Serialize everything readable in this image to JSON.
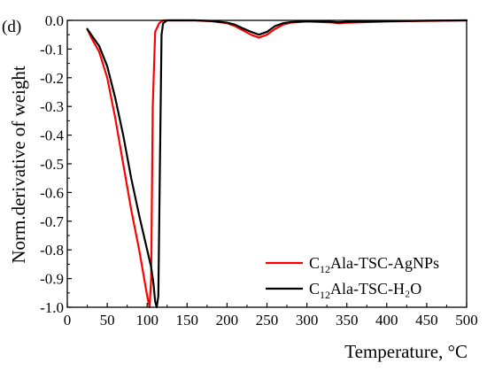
{
  "chart_data": {
    "type": "line",
    "panel_label": "(d)",
    "xlabel": "Temperature, °C",
    "ylabel": "Norm.derivative of weight",
    "xlim": [
      0,
      500
    ],
    "ylim": [
      -1.0,
      0.0
    ],
    "xticks": [
      "0",
      "50",
      "100",
      "150",
      "200",
      "250",
      "300",
      "350",
      "400",
      "450",
      "500"
    ],
    "yticks": [
      "0.0",
      "-0.1",
      "-0.2",
      "-0.3",
      "-0.4",
      "-0.5",
      "-0.6",
      "-0.7",
      "-0.8",
      "-0.9",
      "-1.0"
    ],
    "grid": false,
    "legend_position": "bottom-right",
    "series": [
      {
        "name_main": "C",
        "name_sub": "12",
        "name_rest": "Ala-TSC-AgNPs",
        "color": "#ff0000",
        "x": [
          25,
          30,
          40,
          50,
          60,
          70,
          80,
          90,
          95,
          100,
          103,
          105,
          107,
          110,
          115,
          120,
          140,
          160,
          180,
          200,
          210,
          220,
          230,
          240,
          250,
          260,
          270,
          280,
          300,
          330,
          340,
          350,
          400,
          450,
          500
        ],
        "y": [
          -0.03,
          -0.06,
          -0.11,
          -0.2,
          -0.34,
          -0.5,
          -0.66,
          -0.8,
          -0.88,
          -0.96,
          -1.0,
          -0.9,
          -0.3,
          -0.04,
          -0.01,
          0.0,
          0.0,
          0.0,
          -0.003,
          -0.01,
          -0.02,
          -0.035,
          -0.05,
          -0.06,
          -0.05,
          -0.03,
          -0.015,
          -0.008,
          -0.004,
          -0.007,
          -0.01,
          -0.008,
          -0.004,
          -0.002,
          0.0
        ]
      },
      {
        "name_main": "C",
        "name_sub": "12",
        "name_rest": "Ala-TSC-H₂O",
        "color": "#000000",
        "x": [
          25,
          30,
          40,
          50,
          60,
          70,
          80,
          90,
          100,
          105,
          108,
          110,
          112,
          114,
          116,
          118,
          120,
          125,
          140,
          160,
          180,
          200,
          210,
          220,
          230,
          240,
          250,
          260,
          270,
          280,
          300,
          330,
          340,
          350,
          400,
          450,
          500
        ],
        "y": [
          -0.03,
          -0.05,
          -0.09,
          -0.16,
          -0.27,
          -0.4,
          -0.55,
          -0.68,
          -0.8,
          -0.86,
          -0.92,
          -0.98,
          -1.0,
          -0.96,
          -0.5,
          -0.05,
          -0.01,
          0.0,
          0.0,
          0.0,
          -0.002,
          -0.008,
          -0.015,
          -0.028,
          -0.04,
          -0.05,
          -0.04,
          -0.02,
          -0.01,
          -0.006,
          -0.003,
          -0.005,
          -0.007,
          -0.005,
          -0.003,
          -0.001,
          0.0
        ]
      }
    ]
  }
}
